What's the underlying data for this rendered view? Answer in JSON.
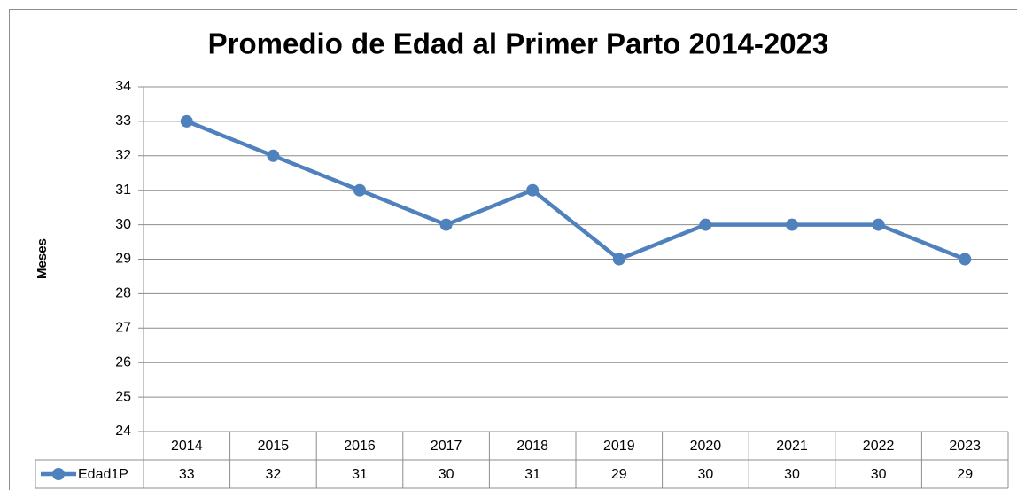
{
  "chart_data": {
    "type": "line",
    "title": "Promedio de Edad al Primer Parto 2014-2023",
    "y_label": "Meses",
    "categories": [
      "2014",
      "2015",
      "2016",
      "2017",
      "2018",
      "2019",
      "2020",
      "2021",
      "2022",
      "2023"
    ],
    "series": [
      {
        "name": "Edad1P",
        "color": "#4f81bd",
        "values": [
          33,
          32,
          31,
          30,
          31,
          29,
          30,
          30,
          30,
          29
        ]
      }
    ],
    "ylim": [
      24,
      34
    ],
    "yticks": [
      24,
      25,
      26,
      27,
      28,
      29,
      30,
      31,
      32,
      33,
      34
    ],
    "grid": true
  }
}
